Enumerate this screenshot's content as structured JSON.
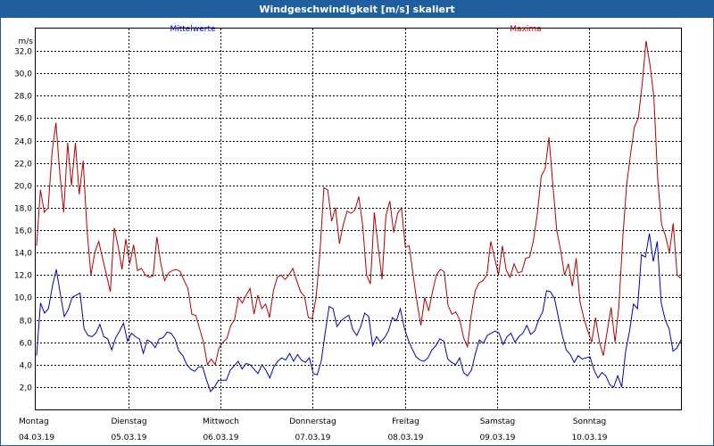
{
  "window": {
    "title": "Windgeschwindigkeit [m/s] skaliert"
  },
  "chart_data": {
    "type": "line",
    "title": "Windgeschwindigkeit [m/s] skaliert",
    "ylabel": "m/s",
    "ylim": [
      0,
      34
    ],
    "yticks": [
      2,
      4,
      6,
      8,
      10,
      12,
      14,
      16,
      18,
      20,
      22,
      24,
      26,
      28,
      30,
      32
    ],
    "ytick_labels": [
      "2,0",
      "4,0",
      "6,0",
      "8,0",
      "10,0",
      "12,0",
      "14,0",
      "16,0",
      "18,0",
      "20,0",
      "22,0",
      "24,0",
      "26,0",
      "28,0",
      "30,0",
      "32,0"
    ],
    "grid": true,
    "xlim": [
      0,
      7
    ],
    "days": [
      {
        "day": "Montag",
        "date": "04.03.19"
      },
      {
        "day": "Dienstag",
        "date": "05.03.19"
      },
      {
        "day": "Mittwoch",
        "date": "06.03.19"
      },
      {
        "day": "Donnerstag",
        "date": "07.03.19"
      },
      {
        "day": "Freitag",
        "date": "08.03.19"
      },
      {
        "day": "Samstag",
        "date": "09.03.19"
      },
      {
        "day": "Sonntag",
        "date": "10.03.19"
      }
    ],
    "series": [
      {
        "name": "Mittelwerte",
        "color": "#0000c0",
        "values": [
          4.8,
          9.5,
          8.6,
          9.0,
          11.0,
          12.5,
          10.3,
          8.3,
          8.9,
          10.0,
          10.2,
          10.4,
          7.2,
          6.6,
          6.5,
          6.8,
          7.6,
          6.5,
          6.3,
          5.3,
          6.4,
          7.0,
          7.7,
          6.1,
          6.8,
          6.5,
          6.3,
          5.0,
          6.2,
          6.0,
          5.5,
          6.3,
          6.4,
          6.9,
          6.8,
          6.3,
          5.2,
          4.8,
          4.0,
          3.6,
          3.4,
          3.8,
          3.8,
          2.6,
          1.6,
          2.0,
          2.6,
          2.6,
          2.6,
          3.5,
          3.9,
          4.3,
          3.6,
          4.1,
          4.0,
          3.6,
          3.2,
          4.0,
          3.5,
          2.8,
          3.8,
          4.3,
          4.6,
          4.4,
          5.0,
          4.3,
          4.9,
          4.4,
          4.2,
          4.6,
          3.2,
          3.1,
          4.3,
          6.8,
          9.2,
          9.0,
          7.4,
          7.9,
          8.2,
          8.4,
          7.1,
          6.6,
          7.4,
          8.6,
          8.3,
          5.7,
          6.5,
          6.0,
          6.4,
          7.0,
          8.2,
          7.9,
          9.0,
          7.3,
          6.2,
          5.4,
          4.7,
          4.4,
          4.3,
          4.6,
          5.3,
          5.7,
          6.3,
          6.1,
          4.5,
          4.2,
          4.0,
          4.6,
          3.3,
          3.0,
          3.5,
          5.0,
          6.2,
          5.9,
          6.6,
          6.8,
          7.0,
          6.8,
          5.8,
          6.5,
          6.8,
          6.0,
          6.5,
          6.8,
          7.5,
          6.7,
          7.0,
          8.0,
          8.7,
          10.6,
          10.5,
          9.9,
          8.2,
          6.6,
          5.3,
          4.9,
          4.2,
          4.8,
          4.5,
          4.6,
          4.7,
          3.5,
          2.8,
          3.3,
          3.0,
          2.2,
          2.0,
          3.0,
          2.0,
          5.2,
          7.0,
          9.4,
          9.0,
          13.8,
          13.6,
          15.7,
          13.2,
          15.0,
          9.5,
          8.0,
          7.2,
          5.2,
          5.5,
          6.2
        ],
        "missing_index": 173
      },
      {
        "name": "Maxima",
        "color": "#b20000",
        "values": [
          14.6,
          19.6,
          17.6,
          18.0,
          23.0,
          25.6,
          21.0,
          17.6,
          23.8,
          20.0,
          23.8,
          19.2,
          22.2,
          16.0,
          12.0,
          14.0,
          15.0,
          13.5,
          12.0,
          10.5,
          16.2,
          14.6,
          12.5,
          15.2,
          13.0,
          14.7,
          12.4,
          12.6,
          12.0,
          11.8,
          11.9,
          15.4,
          13.0,
          11.5,
          12.2,
          12.4,
          12.5,
          12.3,
          11.5,
          10.8,
          8.5,
          8.4,
          7.2,
          6.0,
          4.0,
          4.5,
          4.0,
          5.5,
          6.0,
          6.3,
          7.5,
          8.0,
          10.0,
          9.5,
          10.2,
          10.8,
          8.5,
          10.2,
          9.0,
          9.4,
          8.2,
          10.6,
          11.8,
          12.0,
          11.6,
          12.0,
          12.6,
          11.5,
          10.5,
          10.1,
          8.2,
          8.1,
          10.0,
          14.0,
          19.8,
          19.6,
          16.8,
          18.0,
          14.8,
          16.5,
          17.7,
          17.5,
          17.8,
          19.0,
          16.5,
          12.0,
          11.2,
          17.6,
          14.5,
          11.6,
          17.3,
          18.6,
          15.8,
          17.5,
          18.0,
          14.5,
          14.6,
          12.0,
          9.6,
          7.5,
          10.0,
          8.8,
          10.5,
          12.0,
          12.5,
          12.3,
          9.3,
          8.5,
          8.7,
          8.0,
          6.4,
          5.6,
          8.5,
          10.6,
          11.3,
          11.5,
          12.0,
          15.0,
          13.5,
          12.0,
          14.6,
          12.4,
          11.8,
          13.0,
          12.2,
          12.3,
          13.5,
          13.6,
          15.1,
          17.5,
          20.8,
          21.5,
          24.3,
          20.0,
          16.0,
          14.2,
          12.0,
          13.0,
          11.0,
          13.5,
          9.6,
          8.1,
          7.0,
          6.0,
          8.2,
          6.0,
          4.8,
          7.0,
          9.1,
          6.0,
          9.2,
          15.3,
          20.0,
          22.8,
          25.2,
          26.0,
          29.0,
          32.9,
          30.8,
          27.9,
          20.6,
          16.5,
          15.5,
          14.0,
          16.6,
          12.0,
          11.7
        ],
        "missing_index": null
      }
    ]
  }
}
